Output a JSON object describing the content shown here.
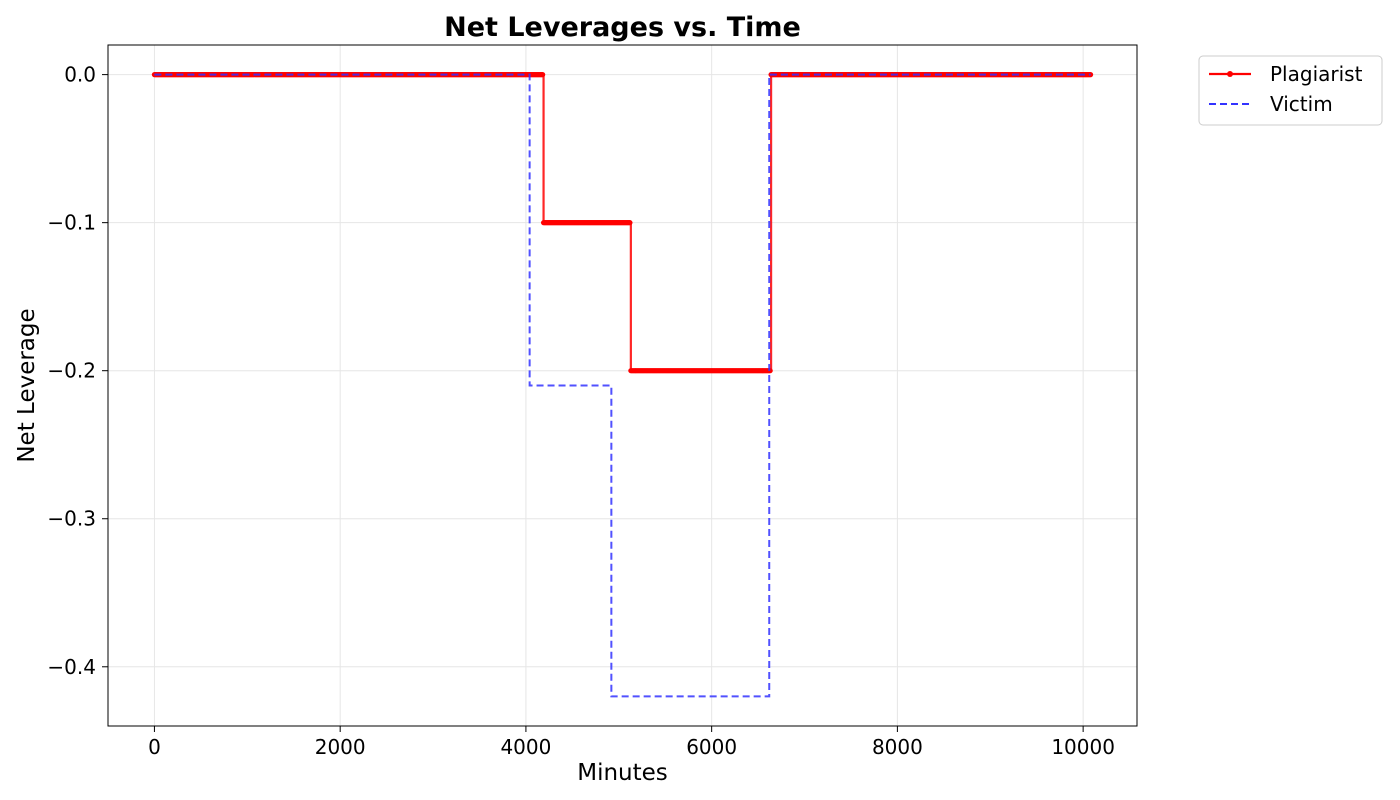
{
  "chart_data": {
    "type": "line",
    "title": "Net Leverages vs. Time",
    "xlabel": "Minutes",
    "ylabel": "Net Leverage",
    "xlim": [
      -500,
      10580
    ],
    "ylim": [
      -0.44,
      0.02
    ],
    "xticks": [
      0,
      2000,
      4000,
      6000,
      8000,
      10000
    ],
    "xtick_labels": [
      "0",
      "2000",
      "4000",
      "6000",
      "8000",
      "10000"
    ],
    "yticks": [
      0.0,
      -0.1,
      -0.2,
      -0.3,
      -0.4
    ],
    "ytick_labels": [
      "0.0",
      "−0.1",
      "−0.2",
      "−0.3",
      "−0.4"
    ],
    "grid": true,
    "legend_position": "outside-top-right",
    "series": [
      {
        "name": "Plagiarist",
        "color": "#ff0000",
        "style": "solid-with-markers",
        "step": true,
        "x": [
          0,
          4180,
          4190,
          5120,
          5130,
          6630,
          6640,
          10080
        ],
        "y": [
          0.0,
          0.0,
          -0.1,
          -0.1,
          -0.2,
          -0.2,
          0.0,
          0.0
        ]
      },
      {
        "name": "Victim",
        "color": "#3333ff",
        "style": "dashed",
        "step": true,
        "x": [
          0,
          4040,
          4920,
          6620,
          10080
        ],
        "y": [
          0.0,
          -0.21,
          -0.42,
          0.0,
          0.0
        ]
      }
    ]
  }
}
